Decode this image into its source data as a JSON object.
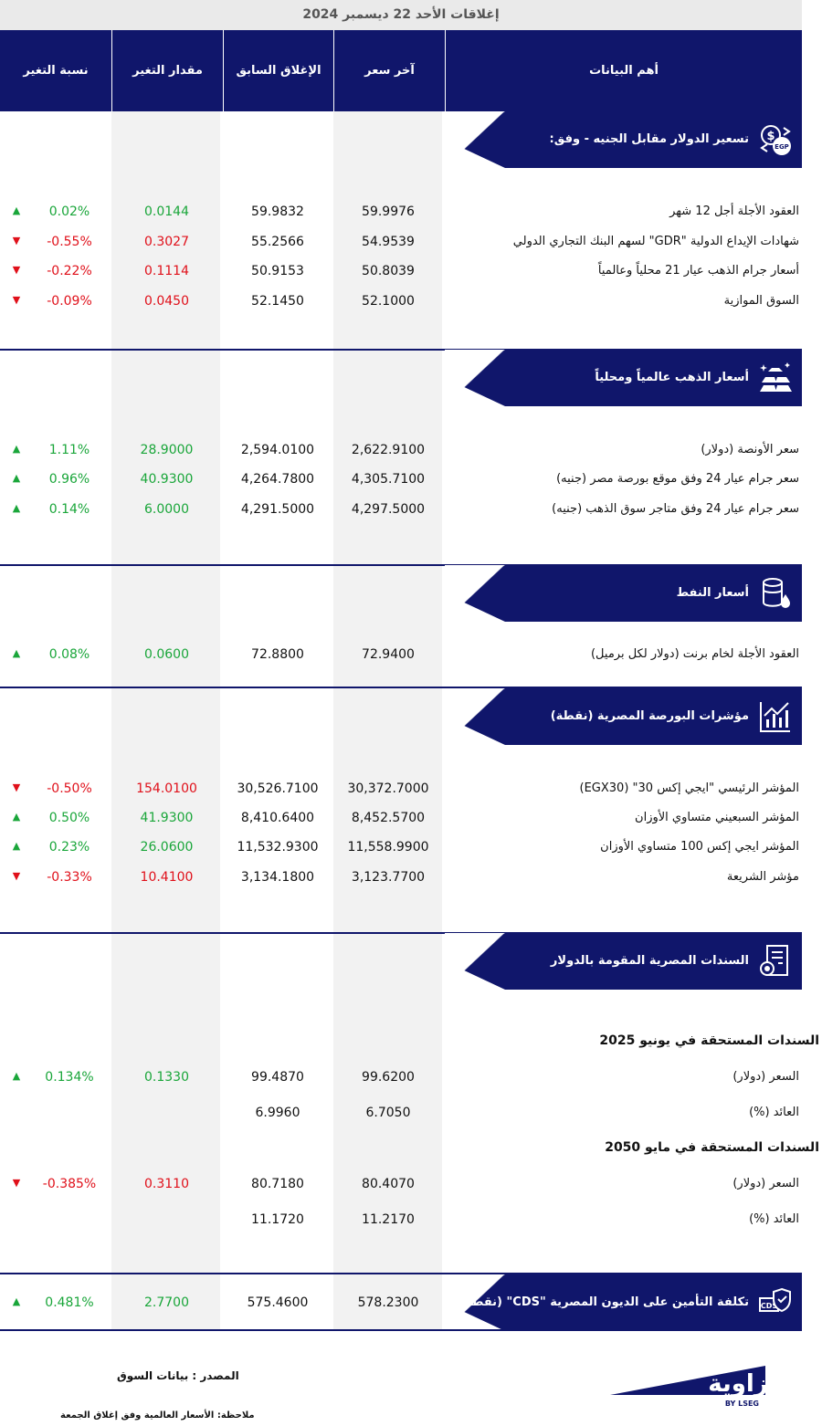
{
  "title": "إغلاقات الأحد 22 ديسمبر 2024",
  "headers": {
    "data": "أهم البيانات",
    "last": "آخر سعر",
    "prev": "الإغلاق السابق",
    "chg": "مقدار التغير",
    "pct": "نسبة التغير"
  },
  "sections": {
    "usd": {
      "title": "تسعير الدولار مقابل الجنيه - وفق:",
      "icon": "dollar-egp-exchange-icon",
      "rows": [
        {
          "label": "العقود الأجلة أجل 12 شهر",
          "last": "59.9976",
          "prev": "59.9832",
          "chg": "0.0144",
          "pct": "0.02%",
          "dir": "up"
        },
        {
          "label": "شهادات الإيداع الدولية \"GDR\" لسهم البنك التجاري الدولي",
          "last": "54.9539",
          "prev": "55.2566",
          "chg": "0.3027",
          "pct": "-0.55%",
          "dir": "down"
        },
        {
          "label": "أسعار جرام الذهب عيار 21 محلياً وعالمياً",
          "last": "50.8039",
          "prev": "50.9153",
          "chg": "0.1114",
          "pct": "-0.22%",
          "dir": "down"
        },
        {
          "label": "السوق الموازية",
          "last": "52.1000",
          "prev": "52.1450",
          "chg": "0.0450",
          "pct": "-0.09%",
          "dir": "down"
        }
      ]
    },
    "gold": {
      "title": "أسعار الذهب عالمياً ومحلياً",
      "icon": "gold-bars-icon",
      "rows": [
        {
          "label": "سعر الأونصة (دولار)",
          "last": "2,622.9100",
          "prev": "2,594.0100",
          "chg": "28.9000",
          "pct": "1.11%",
          "dir": "up"
        },
        {
          "label": "سعر جرام عيار 24 وفق موقع بورصة مصر (جنيه)",
          "last": "4,305.7100",
          "prev": "4,264.7800",
          "chg": "40.9300",
          "pct": "0.96%",
          "dir": "up"
        },
        {
          "label": "سعر جرام عيار 24 وفق متاجر سوق الذهب (جنيه)",
          "last": "4,297.5000",
          "prev": "4,291.5000",
          "chg": "6.0000",
          "pct": "0.14%",
          "dir": "up"
        }
      ]
    },
    "oil": {
      "title": "أسعار النفط",
      "icon": "oil-barrel-icon",
      "rows": [
        {
          "label": "العقود الأجلة لخام برنت (دولار لكل برميل)",
          "last": "72.9400",
          "prev": "72.8800",
          "chg": "0.0600",
          "pct": "0.08%",
          "dir": "up"
        }
      ]
    },
    "egx": {
      "title": "مؤشرات البورصة المصرية (نقطة)",
      "icon": "stock-chart-icon",
      "rows": [
        {
          "label": "المؤشر الرئيسي \"ايجي إكس 30\" (EGX30)",
          "last": "30,372.7000",
          "prev": "30,526.7100",
          "chg": "154.0100",
          "pct": "-0.50%",
          "dir": "down"
        },
        {
          "label": "المؤشر السبعيني متساوي الأوزان",
          "last": "8,452.5700",
          "prev": "8,410.6400",
          "chg": "41.9300",
          "pct": "0.50%",
          "dir": "up"
        },
        {
          "label": "المؤشر ايجي إكس 100 متساوي الأوزان",
          "last": "11,558.9900",
          "prev": "11,532.9300",
          "chg": "26.0600",
          "pct": "0.23%",
          "dir": "up"
        },
        {
          "label": "مؤشر الشريعة",
          "last": "3,123.7700",
          "prev": "3,134.1800",
          "chg": "10.4100",
          "pct": "-0.33%",
          "dir": "down"
        }
      ]
    },
    "bonds": {
      "title": "السندات المصرية المقومة بالدولار",
      "icon": "bond-certificate-icon",
      "group1": "السندات المستحقة في يونيو 2025",
      "group2": "السندات المستحقة في مايو 2050",
      "rows1": [
        {
          "label": "السعر (دولار)",
          "last": "99.6200",
          "prev": "99.4870",
          "chg": "0.1330",
          "pct": "0.134%",
          "dir": "up"
        },
        {
          "label": "العائد (%)",
          "last": "6.7050",
          "prev": "6.9960",
          "chg": "",
          "pct": "",
          "dir": ""
        }
      ],
      "rows2": [
        {
          "label": "السعر (دولار)",
          "last": "80.4070",
          "prev": "80.7180",
          "chg": "0.3110",
          "pct": "-0.385%",
          "dir": "down"
        },
        {
          "label": "العائد (%)",
          "last": "11.2170",
          "prev": "11.1720",
          "chg": "",
          "pct": "",
          "dir": ""
        }
      ]
    },
    "cds": {
      "title": "تكلفة التأمين على الديون المصرية \"CDS\" (نقطة)",
      "icon": "insurance-shield-icon",
      "row": {
        "last": "578.2300",
        "prev": "575.4600",
        "chg": "2.7700",
        "pct": "0.481%",
        "dir": "up"
      }
    }
  },
  "footer": {
    "source": "المصدر : بيانات السوق",
    "note": "ملاحظة: الأسعار العالمية وفق إغلاق الجمعة"
  },
  "logo": {
    "name": "زاوية",
    "sub": "BY LSEG"
  },
  "colors": {
    "navy": "#10166b",
    "up": "#1aa63a",
    "down": "#e0101a"
  }
}
